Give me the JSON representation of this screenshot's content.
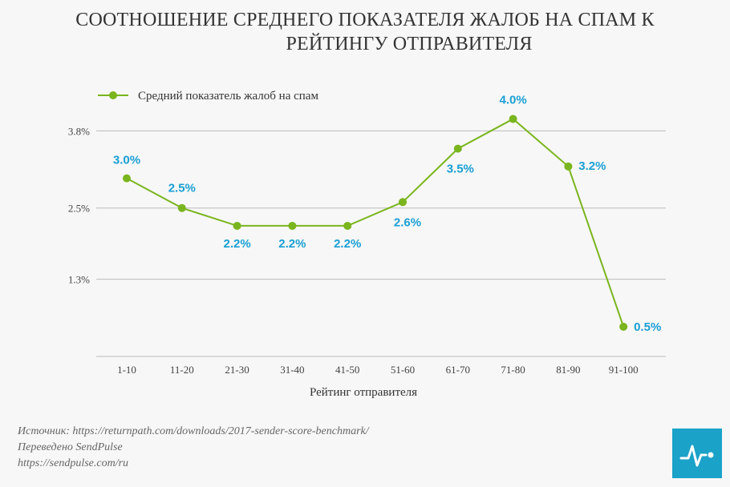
{
  "title": {
    "line1": "СООТНОШЕНИЕ СРЕДНЕГО ПОКАЗАТЕЛЯ ЖАЛОБ НА СПАМ К",
    "line2": "РЕЙТИНГУ ОТПРАВИТЕЛЯ"
  },
  "footer": {
    "source": "Источник: https://returnpath.com/downloads/2017-sender-score-benchmark/",
    "translated": "Переведено SendPulse",
    "url": "https://sendpulse.com/ru"
  },
  "logo_icon": "pulse-icon",
  "colors": {
    "line": "#7ab51d",
    "label": "#1a9fd4",
    "grid": "#bbbbbb",
    "logo": "#1aa2c9"
  },
  "chart_data": {
    "type": "line",
    "title": "СООТНОШЕНИЕ СРЕДНЕГО ПОКАЗАТЕЛЯ ЖАЛОБ НА СПАМ К РЕЙТИНГУ ОТПРАВИТЕЛЯ",
    "xlabel": "Рейтинг отправителя",
    "ylabel": "",
    "categories": [
      "1-10",
      "11-20",
      "21-30",
      "31-40",
      "41-50",
      "51-60",
      "61-70",
      "71-80",
      "81-90",
      "91-100"
    ],
    "series": [
      {
        "name": "Средний показатель жалоб на спам",
        "values": [
          3.0,
          2.5,
          2.2,
          2.2,
          2.2,
          2.6,
          3.5,
          4.0,
          3.2,
          0.5
        ],
        "labels": [
          "3.0%",
          "2.5%",
          "2.2%",
          "2.2%",
          "2.2%",
          "2.6%",
          "3.5%",
          "4.0%",
          "3.2%",
          "0.5%"
        ]
      }
    ],
    "y_ticks": [
      1.3,
      2.5,
      3.8
    ],
    "y_tick_labels": [
      "1.3%",
      "2.5%",
      "3.8%"
    ],
    "ylim": [
      0,
      4.25
    ],
    "grid": true,
    "legend": "top-left"
  }
}
